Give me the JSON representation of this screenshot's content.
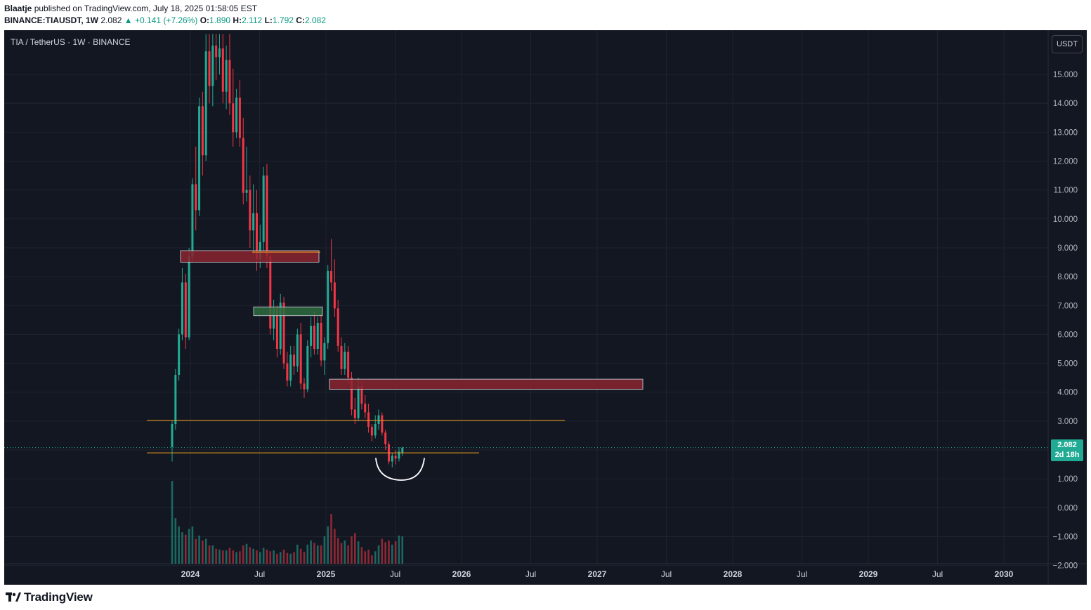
{
  "header": {
    "author": "Blaatje",
    "published_text": "published on TradingView.com, July 18, 2025 01:58:05 EST",
    "symbol": "BINANCE:TIAUSDT, 1W",
    "last": "2.082",
    "change": "+0.141 (+7.26%)",
    "o_label": "O:",
    "o": "1.890",
    "h_label": "H:",
    "h": "2.112",
    "l_label": "L:",
    "l": "1.792",
    "c_label": "C:",
    "c": "2.082"
  },
  "legend": "TIA / TetherUS · 1W · BINANCE",
  "currency_button": "USDT",
  "price_label": {
    "price": "2.082",
    "countdown": "2d 18h"
  },
  "footer": {
    "brand": "TradingView"
  },
  "colors": {
    "up": "#22ab94",
    "down": "#f23645",
    "bg": "#131722",
    "level": "#f7a21b"
  },
  "chart_data": {
    "type": "candlestick",
    "title": "TIA / TetherUS · 1W · BINANCE",
    "ylim": [
      -2,
      16.4
    ],
    "y_ticks": [
      15,
      14,
      13,
      12,
      11,
      10,
      9,
      8,
      7,
      6,
      5,
      4,
      3,
      2,
      1,
      0,
      -1,
      -2
    ],
    "y_tick_labels": [
      "15.000",
      "14.000",
      "13.000",
      "12.000",
      "11.000",
      "10.000",
      "9.000",
      "8.000",
      "7.000",
      "6.000",
      "5.000",
      "4.000",
      "3.000",
      "2.000",
      "1.000",
      "0.000",
      "−1.000",
      "−2.000"
    ],
    "x_ticks": [
      "2024",
      "Jul",
      "2025",
      "Jul",
      "2026",
      "Jul",
      "2027",
      "Jul",
      "2028",
      "Jul",
      "2029",
      "Jul",
      "2030"
    ],
    "grid": true,
    "candles_ohlc": [
      [
        2.1,
        3.0,
        1.6,
        2.9
      ],
      [
        2.9,
        4.8,
        2.7,
        4.6
      ],
      [
        4.6,
        6.2,
        4.4,
        6.0
      ],
      [
        6.0,
        8.3,
        5.8,
        7.8
      ],
      [
        7.8,
        8.1,
        5.5,
        5.9
      ],
      [
        5.9,
        9.0,
        5.8,
        8.7
      ],
      [
        8.7,
        11.4,
        8.5,
        11.2
      ],
      [
        11.2,
        12.5,
        9.6,
        10.3
      ],
      [
        10.3,
        14.2,
        10.1,
        13.9
      ],
      [
        13.9,
        14.4,
        11.5,
        12.2
      ],
      [
        12.2,
        16.4,
        12.0,
        15.8
      ],
      [
        15.8,
        16.4,
        14.0,
        14.6
      ],
      [
        14.6,
        16.4,
        13.9,
        16.0
      ],
      [
        16.0,
        16.4,
        14.8,
        15.6
      ],
      [
        15.6,
        16.4,
        15.0,
        15.9
      ],
      [
        15.9,
        16.4,
        14.0,
        14.4
      ],
      [
        14.4,
        16.0,
        13.8,
        15.5
      ],
      [
        15.5,
        16.4,
        13.6,
        14.0
      ],
      [
        14.0,
        15.2,
        12.5,
        13.0
      ],
      [
        13.0,
        14.5,
        12.8,
        14.2
      ],
      [
        14.2,
        14.8,
        12.5,
        12.8
      ],
      [
        12.8,
        13.5,
        10.5,
        10.9
      ],
      [
        10.9,
        12.5,
        10.6,
        11.0
      ],
      [
        11.0,
        11.5,
        9.0,
        9.6
      ],
      [
        9.6,
        11.2,
        8.8,
        10.2
      ],
      [
        10.2,
        11.0,
        8.2,
        8.6
      ],
      [
        8.6,
        9.8,
        8.3,
        9.2
      ],
      [
        9.2,
        11.8,
        8.9,
        11.5
      ],
      [
        11.5,
        11.9,
        8.3,
        8.7
      ],
      [
        8.7,
        8.9,
        6.0,
        6.2
      ],
      [
        6.2,
        7.2,
        5.8,
        6.9
      ],
      [
        6.9,
        7.0,
        5.2,
        5.5
      ],
      [
        5.5,
        7.4,
        5.3,
        7.1
      ],
      [
        7.1,
        7.3,
        4.8,
        5.0
      ],
      [
        5.0,
        5.4,
        4.2,
        4.4
      ],
      [
        4.4,
        5.6,
        4.2,
        5.3
      ],
      [
        5.3,
        5.6,
        4.6,
        4.9
      ],
      [
        4.9,
        6.2,
        4.7,
        6.0
      ],
      [
        6.0,
        6.4,
        4.1,
        4.3
      ],
      [
        4.3,
        4.5,
        3.8,
        4.1
      ],
      [
        4.1,
        5.8,
        4.0,
        5.6
      ],
      [
        5.6,
        6.6,
        5.2,
        6.3
      ],
      [
        6.3,
        6.8,
        5.3,
        5.5
      ],
      [
        5.5,
        6.6,
        5.3,
        6.4
      ],
      [
        6.4,
        6.7,
        4.9,
        5.1
      ],
      [
        5.1,
        5.9,
        4.6,
        5.7
      ],
      [
        5.7,
        8.4,
        5.5,
        8.2
      ],
      [
        8.2,
        9.3,
        7.5,
        7.8
      ],
      [
        7.8,
        8.6,
        6.6,
        6.9
      ],
      [
        6.9,
        7.2,
        5.4,
        5.6
      ],
      [
        5.6,
        5.9,
        4.6,
        4.8
      ],
      [
        4.8,
        5.7,
        4.6,
        5.4
      ],
      [
        5.4,
        5.6,
        4.3,
        4.5
      ],
      [
        4.5,
        4.7,
        3.2,
        3.4
      ],
      [
        3.4,
        3.8,
        2.9,
        3.1
      ],
      [
        3.1,
        4.5,
        3.0,
        4.2
      ],
      [
        4.2,
        4.4,
        3.4,
        3.6
      ],
      [
        3.6,
        3.9,
        3.1,
        3.3
      ],
      [
        3.3,
        3.6,
        2.6,
        2.8
      ],
      [
        2.8,
        2.9,
        2.3,
        2.5
      ],
      [
        2.5,
        3.2,
        2.4,
        2.9
      ],
      [
        2.9,
        3.4,
        2.7,
        3.2
      ],
      [
        3.2,
        3.3,
        2.5,
        2.6
      ],
      [
        2.6,
        2.7,
        2.0,
        2.2
      ],
      [
        2.2,
        2.3,
        1.5,
        1.6
      ],
      [
        1.6,
        1.9,
        1.4,
        1.8
      ],
      [
        1.8,
        2.0,
        1.5,
        1.7
      ],
      [
        1.7,
        2.1,
        1.6,
        1.94
      ],
      [
        1.89,
        2.11,
        1.79,
        2.08
      ]
    ],
    "volume_relative": [
      1.0,
      0.55,
      0.45,
      0.38,
      0.35,
      0.42,
      0.45,
      0.3,
      0.34,
      0.28,
      0.3,
      0.22,
      0.22,
      0.18,
      0.17,
      0.16,
      0.16,
      0.19,
      0.16,
      0.14,
      0.15,
      0.22,
      0.24,
      0.2,
      0.18,
      0.16,
      0.14,
      0.19,
      0.17,
      0.15,
      0.16,
      0.12,
      0.14,
      0.17,
      0.13,
      0.12,
      0.14,
      0.23,
      0.18,
      0.14,
      0.23,
      0.28,
      0.25,
      0.22,
      0.22,
      0.33,
      0.45,
      0.6,
      0.42,
      0.31,
      0.25,
      0.28,
      0.22,
      0.33,
      0.37,
      0.27,
      0.2,
      0.15,
      0.17,
      0.1,
      0.15,
      0.22,
      0.3,
      0.26,
      0.28,
      0.23,
      0.27,
      0.34,
      0.33
    ],
    "zones": [
      {
        "color": "red",
        "y0": 8.5,
        "y1": 8.9
      },
      {
        "color": "green",
        "y0": 6.65,
        "y1": 6.95
      },
      {
        "color": "red",
        "y0": 4.1,
        "y1": 4.45
      }
    ],
    "levels": [
      3.02,
      1.9
    ],
    "last_price": 2.082
  }
}
